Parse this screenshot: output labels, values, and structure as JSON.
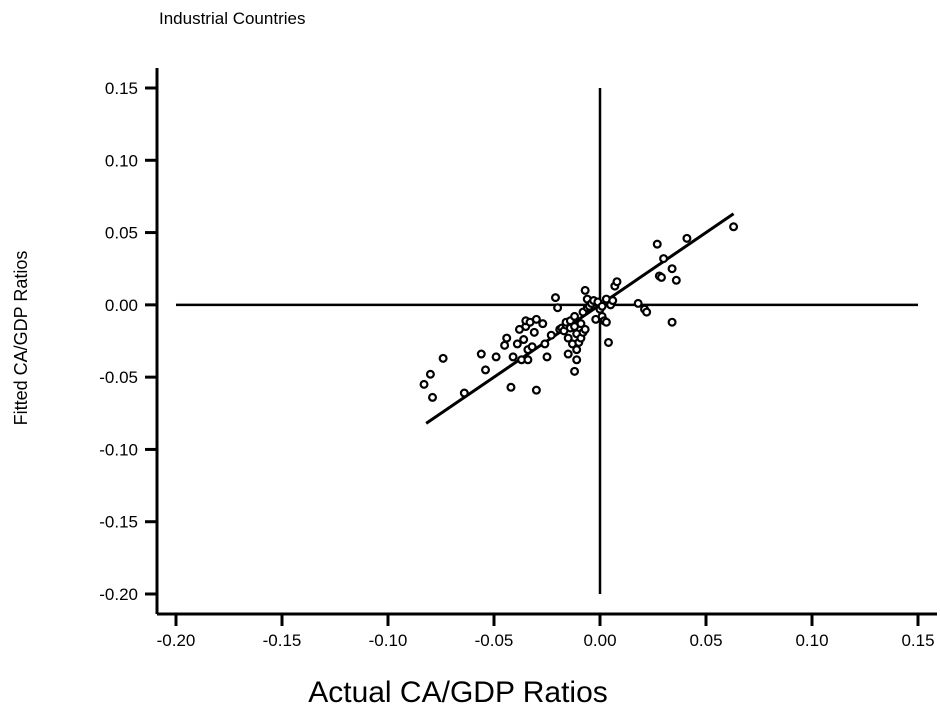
{
  "chart_data": {
    "type": "scatter",
    "title": "Industrial Countries",
    "xlabel": "Actual CA/GDP Ratios",
    "ylabel": "Fitted CA/GDP Ratios",
    "xlim": [
      -0.2,
      0.15
    ],
    "ylim": [
      -0.2,
      0.15
    ],
    "x_ticks": [
      -0.2,
      -0.15,
      -0.1,
      -0.05,
      0.0,
      0.05,
      0.1,
      0.15
    ],
    "y_ticks": [
      -0.2,
      -0.15,
      -0.1,
      -0.05,
      0.0,
      0.05,
      0.1,
      0.15
    ],
    "x_tick_labels": [
      "-0.20",
      "-0.15",
      "-0.10",
      "-0.05",
      "0.00",
      "0.05",
      "0.10",
      "0.15"
    ],
    "y_tick_labels": [
      "-0.20",
      "-0.15",
      "-0.10",
      "-0.05",
      "0.00",
      "0.05",
      "0.10",
      "0.15"
    ],
    "grid": false,
    "reference_lines": {
      "x": 0.0,
      "y": 0.0
    },
    "fit_line": {
      "x": [
        -0.082,
        0.063
      ],
      "y": [
        -0.082,
        0.063
      ]
    },
    "points": [
      [
        -0.083,
        -0.055
      ],
      [
        -0.08,
        -0.048
      ],
      [
        -0.079,
        -0.064
      ],
      [
        -0.074,
        -0.037
      ],
      [
        -0.064,
        -0.061
      ],
      [
        -0.056,
        -0.034
      ],
      [
        -0.054,
        -0.045
      ],
      [
        -0.049,
        -0.036
      ],
      [
        -0.045,
        -0.028
      ],
      [
        -0.044,
        -0.023
      ],
      [
        -0.042,
        -0.057
      ],
      [
        -0.041,
        -0.036
      ],
      [
        -0.039,
        -0.027
      ],
      [
        -0.038,
        -0.017
      ],
      [
        -0.037,
        -0.038
      ],
      [
        -0.036,
        -0.024
      ],
      [
        -0.035,
        -0.015
      ],
      [
        -0.035,
        -0.011
      ],
      [
        -0.034,
        -0.031
      ],
      [
        -0.034,
        -0.038
      ],
      [
        -0.033,
        -0.012
      ],
      [
        -0.032,
        -0.029
      ],
      [
        -0.031,
        -0.019
      ],
      [
        -0.03,
        -0.01
      ],
      [
        -0.03,
        -0.059
      ],
      [
        -0.027,
        -0.013
      ],
      [
        -0.026,
        -0.027
      ],
      [
        -0.025,
        -0.036
      ],
      [
        -0.023,
        -0.021
      ],
      [
        -0.021,
        0.005
      ],
      [
        -0.02,
        -0.002
      ],
      [
        -0.019,
        -0.017
      ],
      [
        -0.018,
        -0.016
      ],
      [
        -0.017,
        -0.018
      ],
      [
        -0.016,
        -0.014
      ],
      [
        -0.016,
        -0.012
      ],
      [
        -0.015,
        -0.023
      ],
      [
        -0.015,
        -0.034
      ],
      [
        -0.014,
        -0.016
      ],
      [
        -0.014,
        -0.011
      ],
      [
        -0.013,
        -0.027
      ],
      [
        -0.012,
        -0.046
      ],
      [
        -0.012,
        -0.015
      ],
      [
        -0.012,
        -0.008
      ],
      [
        -0.011,
        -0.02
      ],
      [
        -0.011,
        -0.031
      ],
      [
        -0.011,
        -0.038
      ],
      [
        -0.01,
        -0.026
      ],
      [
        -0.009,
        -0.013
      ],
      [
        -0.009,
        -0.023
      ],
      [
        -0.008,
        -0.005
      ],
      [
        -0.008,
        -0.019
      ],
      [
        -0.007,
        0.01
      ],
      [
        -0.007,
        -0.017
      ],
      [
        -0.006,
        -0.002
      ],
      [
        -0.006,
        0.004
      ],
      [
        -0.005,
        -0.001
      ],
      [
        -0.004,
        0.001
      ],
      [
        -0.003,
        0.003
      ],
      [
        -0.002,
        -0.01
      ],
      [
        -0.001,
        0.002
      ],
      [
        0.0,
        -0.003
      ],
      [
        0.001,
        -0.001
      ],
      [
        0.001,
        -0.008
      ],
      [
        0.002,
        -0.011
      ],
      [
        0.003,
        -0.012
      ],
      [
        0.003,
        0.004
      ],
      [
        0.004,
        -0.026
      ],
      [
        0.005,
        0.0
      ],
      [
        0.006,
        0.003
      ],
      [
        0.007,
        0.013
      ],
      [
        0.008,
        0.016
      ],
      [
        0.018,
        0.001
      ],
      [
        0.021,
        -0.003
      ],
      [
        0.022,
        -0.005
      ],
      [
        0.027,
        0.042
      ],
      [
        0.028,
        0.02
      ],
      [
        0.029,
        0.019
      ],
      [
        0.03,
        0.032
      ],
      [
        0.034,
        0.025
      ],
      [
        0.034,
        -0.012
      ],
      [
        0.036,
        0.017
      ],
      [
        0.041,
        0.046
      ],
      [
        0.063,
        0.054
      ]
    ]
  }
}
